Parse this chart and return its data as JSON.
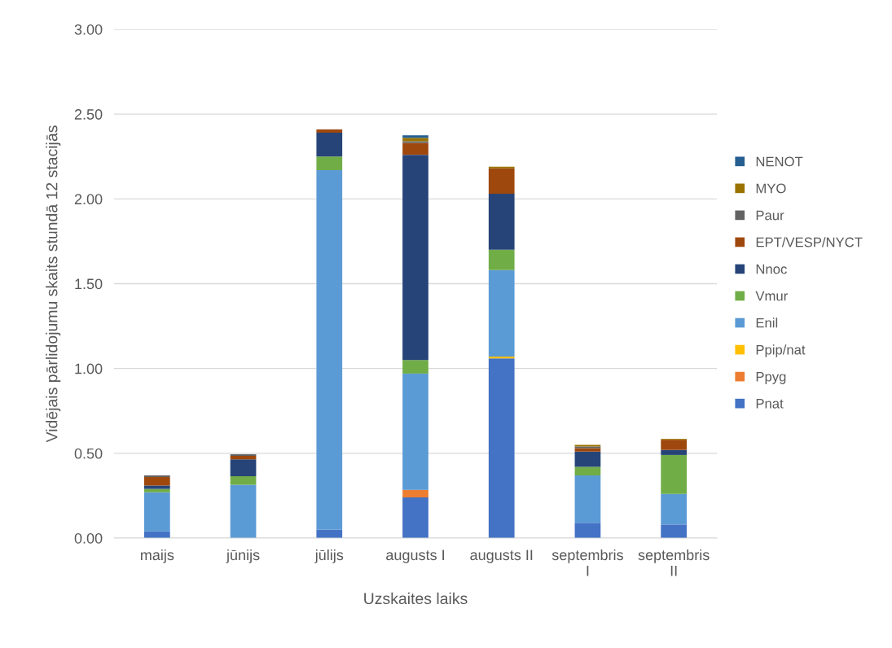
{
  "chart_data": {
    "type": "bar",
    "stacked": true,
    "xlabel": "Uzskaites laiks",
    "ylabel": "Vidējais pārlidojumu skaits stundā 12 stacijās",
    "categories": [
      "maijs",
      "jūnijs",
      "jūlijs",
      "augusts I",
      "augusts II",
      "septembris I",
      "septembris II"
    ],
    "series": [
      {
        "name": "Pnat",
        "color": "#4472c4",
        "values": [
          0.04,
          null,
          0.05,
          0.24,
          1.06,
          0.09,
          0.08
        ]
      },
      {
        "name": "Ppyg",
        "color": "#ed7d31",
        "values": [
          0,
          0,
          0,
          0.045,
          0,
          0,
          0
        ]
      },
      {
        "name": "Ppip/nat",
        "color": "#ffc000",
        "values": [
          0,
          0,
          0,
          0,
          0.01,
          0,
          0
        ]
      },
      {
        "name": "Enil",
        "color": "#5b9bd5",
        "values": [
          0.23,
          0.315,
          2.12,
          0.685,
          0.51,
          0.28,
          0.18
        ]
      },
      {
        "name": "Vmur",
        "color": "#70ad47",
        "values": [
          0.02,
          0.05,
          0.08,
          0.08,
          0.12,
          0.05,
          0.23
        ]
      },
      {
        "name": "Nnoc",
        "color": "#264478",
        "values": [
          0.02,
          0.1,
          0.14,
          1.21,
          0.33,
          0.09,
          0.03
        ]
      },
      {
        "name": "EPT/VESP/NYCT",
        "color": "#9e480e",
        "values": [
          0.05,
          0.02,
          0.02,
          0.07,
          0.15,
          0.02,
          0.06
        ]
      },
      {
        "name": "Paur",
        "color": "#636363",
        "values": [
          0.01,
          0.01,
          0,
          0.01,
          0,
          0.01,
          0
        ]
      },
      {
        "name": "MYO",
        "color": "#997300",
        "values": [
          0,
          0,
          0,
          0.02,
          0.01,
          0.01,
          0.005
        ]
      },
      {
        "name": "NENOT",
        "color": "#255e91",
        "values": [
          0,
          0,
          0,
          0.015,
          0,
          0,
          0
        ]
      }
    ],
    "ylim": [
      0,
      3
    ],
    "yticks": [
      {
        "value": 0,
        "label": "0.00"
      },
      {
        "value": 0.5,
        "label": "0.50"
      },
      {
        "value": 1,
        "label": "1.00"
      },
      {
        "value": 1.5,
        "label": "1.50"
      },
      {
        "value": 2,
        "label": "2.00"
      },
      {
        "value": 2.5,
        "label": "2.50"
      },
      {
        "value": 3,
        "label": "3.00"
      }
    ],
    "grid": "y",
    "legend": "right"
  }
}
